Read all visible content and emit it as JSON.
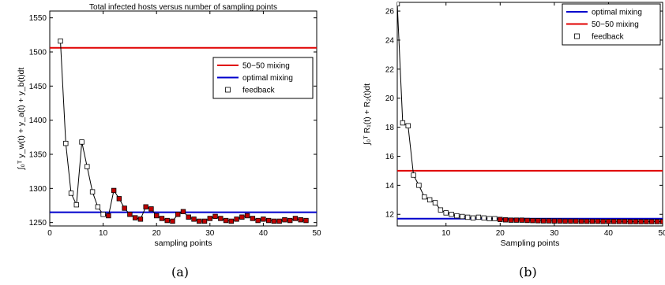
{
  "chart_data": [
    {
      "type": "line",
      "title": "Total infected hosts versus number of sampling points",
      "xlabel": "sampling points",
      "ylabel": "∫₀ᵀ y_w(t) + y_a(t) + y_b(t)dt",
      "xlim": [
        0,
        50
      ],
      "ylim": [
        1245,
        1560
      ],
      "xticks": [
        0,
        10,
        20,
        30,
        40,
        50
      ],
      "yticks": [
        1250,
        1300,
        1350,
        1400,
        1450,
        1500,
        1550
      ],
      "grid": false,
      "legend_position": "upper-right",
      "series": [
        {
          "name": "50−50 mixing",
          "kind": "hline",
          "color": "#e00000",
          "value": 1506
        },
        {
          "name": "optimal mixing",
          "kind": "hline",
          "color": "#0000cc",
          "value": 1265
        },
        {
          "name": "feedback",
          "kind": "line-markers",
          "color": "#000000",
          "x": [
            2,
            3,
            4,
            5,
            6,
            7,
            8,
            9,
            10,
            11,
            12,
            13,
            14,
            15,
            16,
            17,
            18,
            19,
            20,
            21,
            22,
            23,
            24,
            25,
            26,
            27,
            28,
            29,
            30,
            31,
            32,
            33,
            34,
            35,
            36,
            37,
            38,
            39,
            40,
            41,
            42,
            43,
            44,
            45,
            46,
            47,
            48
          ],
          "y": [
            1516,
            1366,
            1293,
            1276,
            1368,
            1332,
            1295,
            1273,
            1262,
            1260,
            1297,
            1285,
            1271,
            1262,
            1257,
            1255,
            1273,
            1270,
            1260,
            1256,
            1253,
            1252,
            1262,
            1266,
            1258,
            1255,
            1252,
            1252,
            1256,
            1259,
            1256,
            1253,
            1252,
            1255,
            1258,
            1260,
            1256,
            1253,
            1255,
            1253,
            1252,
            1252,
            1254,
            1253,
            1256,
            1254,
            1253
          ]
        }
      ]
    },
    {
      "type": "line",
      "title": "",
      "xlabel": "Sampling points",
      "ylabel": "∫₀ᵀ R₁(t) + R₂(t)dt",
      "xlim": [
        1,
        50
      ],
      "ylim": [
        11.2,
        26.6
      ],
      "xticks": [
        10,
        20,
        30,
        40,
        50
      ],
      "yticks": [
        12,
        14,
        16,
        18,
        20,
        22,
        24,
        26
      ],
      "grid": false,
      "legend_position": "upper-right",
      "series": [
        {
          "name": "optimal mixing",
          "kind": "hline",
          "color": "#0000cc",
          "value": 11.7
        },
        {
          "name": "50−50 mixing",
          "kind": "hline",
          "color": "#e00000",
          "value": 15.0
        },
        {
          "name": "feedback",
          "kind": "line-markers",
          "color": "#000000",
          "x": [
            1,
            2,
            3,
            4,
            5,
            6,
            7,
            8,
            9,
            10,
            11,
            12,
            13,
            14,
            15,
            16,
            17,
            18,
            19,
            20,
            21,
            22,
            23,
            24,
            25,
            26,
            27,
            28,
            29,
            30,
            31,
            32,
            33,
            34,
            35,
            36,
            37,
            38,
            39,
            40,
            41,
            42,
            43,
            44,
            45,
            46,
            47,
            48,
            49,
            50
          ],
          "y": [
            26.5,
            18.3,
            18.1,
            14.7,
            14.0,
            13.2,
            13.0,
            12.8,
            12.3,
            12.1,
            12.0,
            11.9,
            11.85,
            11.8,
            11.75,
            11.8,
            11.75,
            11.7,
            11.7,
            11.65,
            11.62,
            11.6,
            11.6,
            11.6,
            11.58,
            11.57,
            11.56,
            11.55,
            11.55,
            11.54,
            11.54,
            11.53,
            11.53,
            11.53,
            11.52,
            11.52,
            11.52,
            11.52,
            11.51,
            11.51,
            11.51,
            11.51,
            11.51,
            11.5,
            11.5,
            11.5,
            11.5,
            11.5,
            11.5,
            11.5
          ]
        }
      ]
    }
  ],
  "captions": [
    "(a)",
    "(b)"
  ]
}
